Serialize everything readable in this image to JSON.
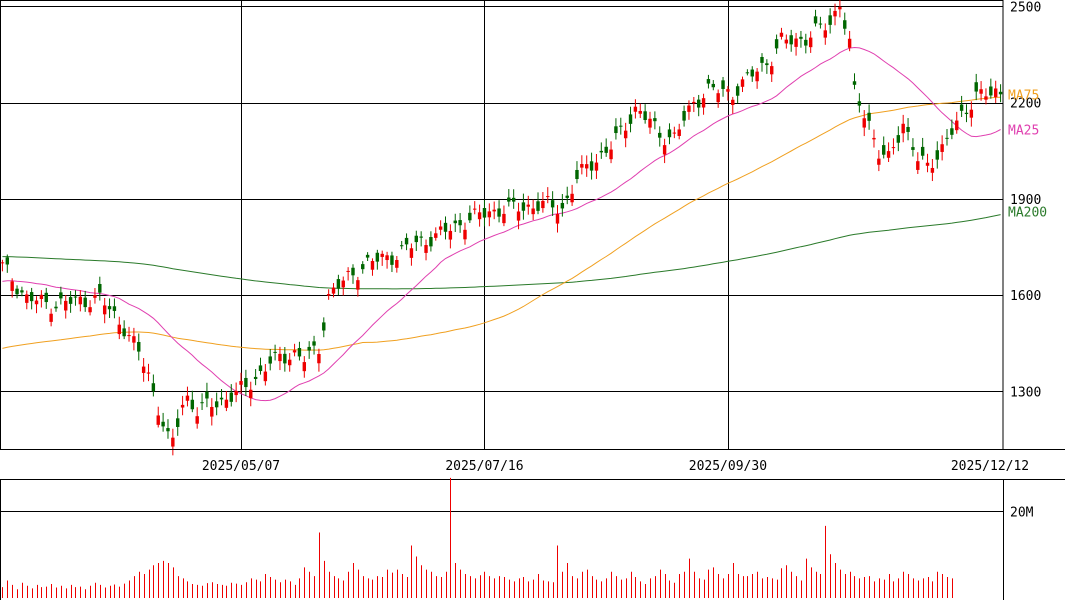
{
  "chart_data": {
    "type": "candlestick",
    "price_axis": {
      "ylim": [
        1120,
        2520
      ],
      "ticks": [
        1300,
        1600,
        1900,
        2200,
        2500
      ],
      "tick_labels": [
        "1300",
        "1600",
        "1900",
        "2200",
        "2500"
      ]
    },
    "date_labels": [
      "2025/05/07",
      "2025/07/16",
      "2025/09/30",
      "2025/12/12"
    ],
    "series_labels": {
      "ma75": "MA75",
      "ma25": "MA25",
      "ma200": "MA200"
    },
    "colors": {
      "up": "#ee0000",
      "down": "#006600",
      "ma25": "#e040b0",
      "ma75": "#f0a020",
      "ma200": "#2a7a2a",
      "volume": "#ee0000",
      "grid": "#000000"
    },
    "volume_axis": {
      "ylim": [
        0,
        27
      ],
      "unit": "M",
      "ticks": [
        20
      ],
      "tick_labels": [
        "20M"
      ]
    },
    "ohlc_anchor_close": [
      [
        0,
        1690
      ],
      [
        5,
        1590
      ],
      [
        10,
        1570
      ],
      [
        15,
        1580
      ],
      [
        20,
        1590
      ],
      [
        25,
        1500
      ],
      [
        28,
        1420
      ],
      [
        30,
        1350
      ],
      [
        32,
        1250
      ],
      [
        34,
        1150
      ],
      [
        35,
        1140
      ],
      [
        37,
        1260
      ],
      [
        38,
        1280
      ],
      [
        40,
        1240
      ],
      [
        45,
        1270
      ],
      [
        50,
        1310
      ],
      [
        55,
        1390
      ],
      [
        60,
        1420
      ],
      [
        62,
        1400
      ],
      [
        65,
        1430
      ],
      [
        67,
        1600
      ],
      [
        70,
        1640
      ],
      [
        75,
        1700
      ],
      [
        80,
        1720
      ],
      [
        85,
        1760
      ],
      [
        90,
        1790
      ],
      [
        95,
        1830
      ],
      [
        100,
        1860
      ],
      [
        105,
        1870
      ],
      [
        110,
        1880
      ],
      [
        112,
        1880
      ],
      [
        115,
        1870
      ],
      [
        118,
        1960
      ],
      [
        120,
        2000
      ],
      [
        125,
        2060
      ],
      [
        130,
        2180
      ],
      [
        133,
        2140
      ],
      [
        135,
        2100
      ],
      [
        138,
        2090
      ],
      [
        142,
        2200
      ],
      [
        145,
        2240
      ],
      [
        150,
        2230
      ],
      [
        155,
        2300
      ],
      [
        158,
        2340
      ],
      [
        160,
        2390
      ],
      [
        165,
        2400
      ],
      [
        170,
        2450
      ],
      [
        172,
        2510
      ],
      [
        174,
        2380
      ],
      [
        175,
        2230
      ],
      [
        178,
        2140
      ],
      [
        180,
        2040
      ],
      [
        182,
        2020
      ],
      [
        185,
        2140
      ],
      [
        188,
        2020
      ],
      [
        190,
        2000
      ],
      [
        193,
        2060
      ],
      [
        196,
        2130
      ],
      [
        198,
        2180
      ],
      [
        200,
        2230
      ],
      [
        203,
        2220
      ],
      [
        205,
        2230
      ]
    ],
    "volume_pattern_m": [
      2.5,
      4,
      3,
      2,
      3.5,
      2.8,
      2.2,
      3,
      2.5,
      2.6,
      3.2,
      2.4,
      2.8,
      2.2,
      3,
      2.5,
      2.6,
      2,
      2.8,
      3.5,
      3,
      2.4,
      2.8,
      3.1,
      2.6,
      3.3,
      4,
      5,
      6,
      5.5,
      6.5,
      7.5,
      8,
      8.5,
      8,
      7,
      5,
      4.5,
      3.8,
      3.2,
      3,
      2.8,
      3.4,
      3.6,
      3.2,
      3,
      2.8,
      3.5,
      3.3,
      3,
      3.6,
      4.5,
      4.2,
      3.8,
      5.5,
      4.8,
      4.2,
      3.6,
      4.2,
      3.8,
      3,
      4.5,
      7,
      6,
      5,
      15,
      8.5,
      6,
      5,
      4.5,
      4,
      6,
      8,
      6.5,
      5,
      4.5,
      4.2,
      5,
      4.8,
      6.5,
      5.8,
      6.5,
      5.5,
      4.8,
      12,
      9.5,
      7.5,
      6.5,
      6,
      5,
      4.8,
      6,
      27.5,
      8,
      6.5,
      5.5,
      5,
      4.5,
      5.2,
      6,
      5,
      4.5,
      5,
      4.8,
      4.2,
      3.8,
      4.5,
      4.8,
      3.8,
      4.2,
      5.5,
      4,
      3.8,
      3.6,
      12,
      6,
      8,
      5,
      4.5,
      6,
      6.5,
      5,
      4.2,
      3.8,
      4.5,
      6,
      5,
      4.2,
      4.5,
      6,
      4.8,
      3.8,
      3.2,
      4.5,
      5,
      6.5,
      5.5,
      4,
      3.5,
      5.5,
      6,
      9,
      6,
      4.5,
      4.2,
      6.5,
      7,
      5.5,
      4.5,
      5.5,
      8,
      5.5,
      5,
      5,
      5.5,
      6,
      4.5,
      4.8,
      4.5,
      4.2,
      6.8,
      7.5,
      6,
      5,
      4,
      9,
      7,
      6,
      5.5,
      16.5,
      10,
      8,
      6.5,
      5.5,
      6,
      5,
      4.5,
      4.8,
      5,
      3.8,
      4.5,
      4.2,
      5.5,
      3.8,
      4.5,
      6,
      5.5,
      4.5,
      4,
      4.5,
      4.8,
      3.8,
      6,
      5.5,
      4.8,
      4.5
    ]
  }
}
